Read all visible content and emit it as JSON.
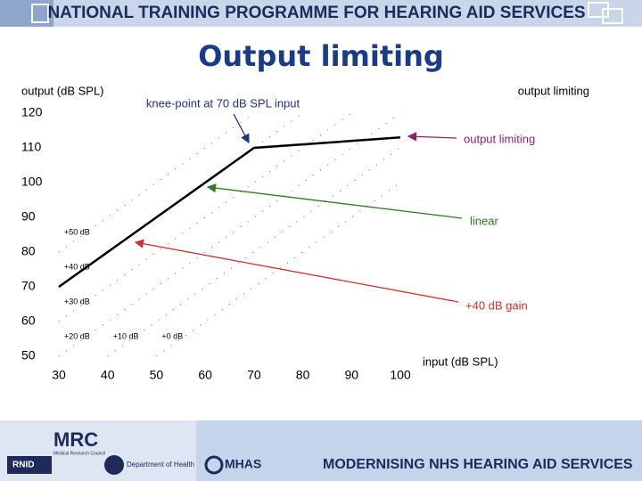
{
  "header": {
    "banner": "NATIONAL TRAINING PROGRAMME FOR  HEARING AID SERVICES",
    "title": "Output limiting"
  },
  "chart_data": {
    "type": "line",
    "title": "output limiting",
    "y_label": "output (dB SPL)",
    "x_label": "input (dB SPL)",
    "xlim": [
      30,
      100
    ],
    "xticks": [
      30,
      40,
      50,
      60,
      70,
      80,
      90,
      100
    ],
    "ylim": [
      50,
      120
    ],
    "yticks": [
      50,
      60,
      70,
      80,
      90,
      100,
      110,
      120
    ],
    "series": [
      {
        "color": "#000000",
        "x": [
          30,
          70,
          100
        ],
        "values": [
          70,
          110,
          113
        ]
      }
    ],
    "gain_lines": [
      {
        "label": "+50 dB",
        "gain": 50
      },
      {
        "label": "+40 dB",
        "gain": 40
      },
      {
        "label": "+30 dB",
        "gain": 30
      },
      {
        "label": "+20 dB",
        "gain": 20
      },
      {
        "label": "+10 dB",
        "gain": 10
      },
      {
        "label": "+0 dB",
        "gain": 0
      }
    ],
    "annotations": [
      {
        "text": "knee-point at 70 dB SPL input",
        "color": "#1f2f8f"
      },
      {
        "text": "output limiting",
        "color": "#8e1f6f"
      },
      {
        "text": "linear",
        "color": "#2e7d1e"
      },
      {
        "text": "+40 dB gain",
        "color": "#d0302a"
      }
    ]
  },
  "footer": {
    "mrc": "MRC",
    "mrc_sub": "Medical Research Council",
    "rnid": "RNID",
    "dh": "Department of Health",
    "mhas": "MHAS",
    "banner": "MODERNISING NHS HEARING AID SERVICES"
  }
}
